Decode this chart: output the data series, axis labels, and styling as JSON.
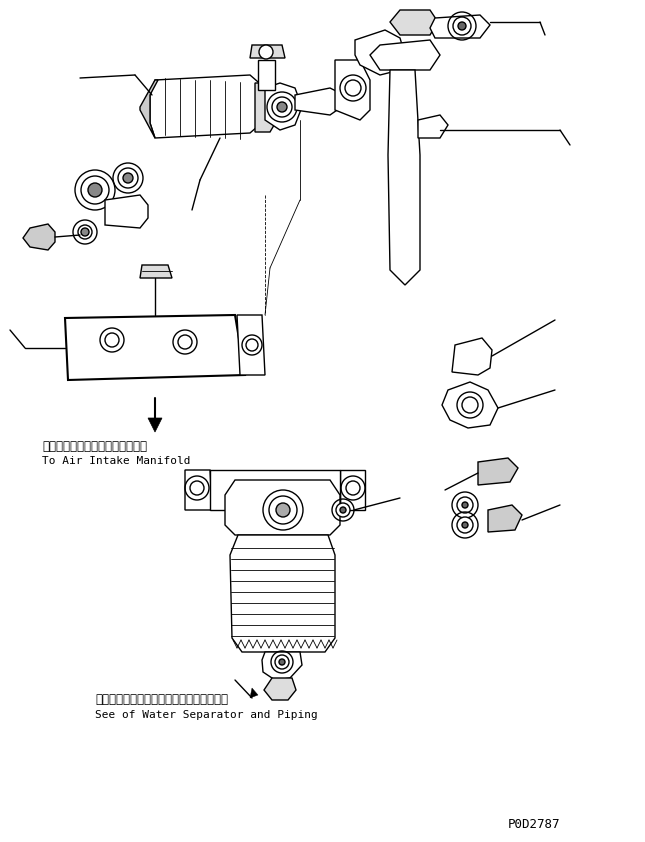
{
  "background_color": "#ffffff",
  "line_color": "#000000",
  "text_color": "#000000",
  "figsize": [
    6.45,
    8.42
  ],
  "dpi": 100,
  "annotation1_jp": "エアーインテークマニホールドへ",
  "annotation1_en": "To Air Intake Manifold",
  "annotation2_jp": "ウォータセパレータおよびパイピング参照",
  "annotation2_en": "See of Water Separator and Piping",
  "part_number": "P0D2787",
  "lw": 1.0,
  "lw_thin": 0.6,
  "lw_thick": 1.5
}
